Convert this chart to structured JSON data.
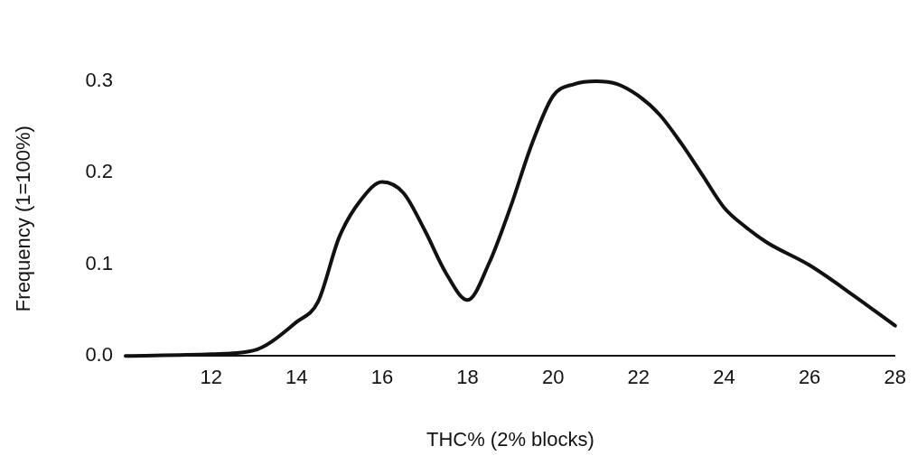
{
  "chart_data": {
    "type": "line",
    "xlabel": "THC% (2% blocks)",
    "ylabel": "Frequency (1=100%)",
    "x": [
      10,
      12,
      13,
      14,
      14.5,
      15,
      15.5,
      16,
      16.5,
      17,
      17.5,
      18,
      18.5,
      19,
      19.5,
      20,
      20.5,
      21,
      21.5,
      22,
      22.5,
      23,
      23.5,
      24,
      24.5,
      25,
      26,
      27,
      28
    ],
    "series": [
      {
        "color": "#111111",
        "values": [
          0,
          0.002,
          0.006,
          0.037,
          0.059,
          0.13,
          0.17,
          0.19,
          0.178,
          0.137,
          0.09,
          0.061,
          0.101,
          0.162,
          0.231,
          0.284,
          0.297,
          0.3,
          0.297,
          0.284,
          0.263,
          0.232,
          0.197,
          0.162,
          0.141,
          0.124,
          0.099,
          0.067,
          0.033
        ]
      }
    ],
    "xlim": [
      10,
      28
    ],
    "xticks": [
      12,
      14,
      16,
      18,
      20,
      22,
      24,
      26,
      28
    ],
    "ylim": [
      0,
      0.3
    ],
    "yticks": [
      {
        "value": 0,
        "label": "0.0"
      },
      {
        "value": 0.1,
        "label": "0.1"
      },
      {
        "value": 0.2,
        "label": "0.2"
      },
      {
        "value": 0.3,
        "label": "0.3"
      }
    ],
    "grid": false,
    "legend": false,
    "marker": "none",
    "line_style": "solid"
  }
}
